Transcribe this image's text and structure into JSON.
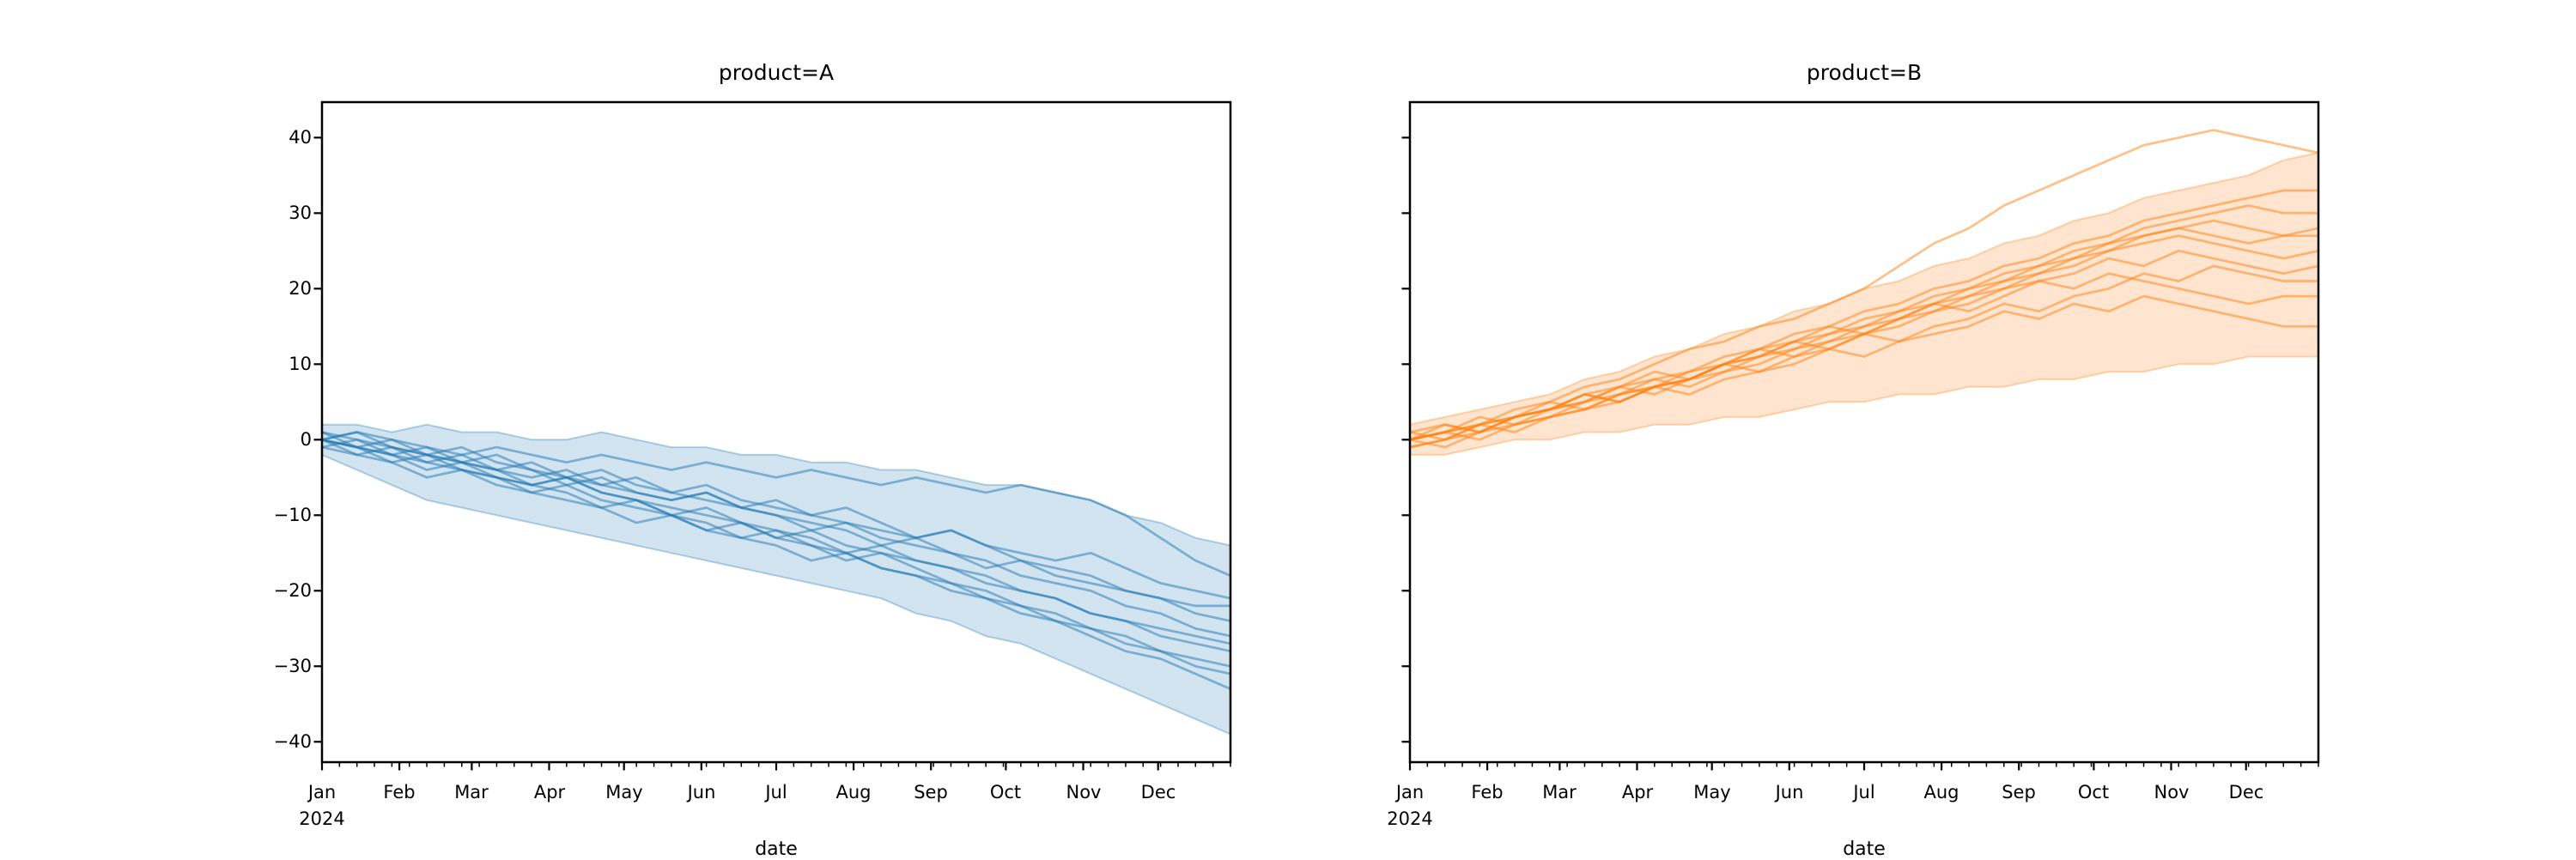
{
  "figure": {
    "background": "#ffffff"
  },
  "chart_data": [
    {
      "type": "line",
      "title": "product=A",
      "xlabel": "date",
      "ylabel": "",
      "color": "#1f77b4",
      "legend": "none",
      "grid": false,
      "x_axis": {
        "year": "2024",
        "months": [
          "Jan",
          "Feb",
          "Mar",
          "Apr",
          "May",
          "Jun",
          "Jul",
          "Aug",
          "Sep",
          "Oct",
          "Nov",
          "Dec"
        ],
        "minor_ticks": "weekly"
      },
      "x_weeks": [
        0,
        2,
        4,
        6,
        8,
        10,
        12,
        14,
        16,
        18,
        20,
        22,
        24,
        26,
        28,
        30,
        32,
        34,
        36,
        38,
        40,
        42,
        44,
        46,
        48,
        50,
        52
      ],
      "yticks": [
        40,
        30,
        20,
        10,
        0,
        -10,
        -20,
        -30,
        -40
      ],
      "ytick_labels": [
        "40",
        "30",
        "20",
        "10",
        "0",
        "−10",
        "−20",
        "−30",
        "−40"
      ],
      "ylim": [
        -42.7,
        44.7
      ],
      "band": {
        "upper": [
          2,
          2,
          1,
          2,
          1,
          1,
          0,
          0,
          1,
          0,
          -1,
          -1,
          -2,
          -2,
          -3,
          -3,
          -4,
          -4,
          -5,
          -6,
          -6,
          -7,
          -8,
          -10,
          -11,
          -13,
          -14
        ],
        "lower": [
          -2,
          -4,
          -6,
          -8,
          -9,
          -10,
          -11,
          -12,
          -13,
          -14,
          -15,
          -16,
          -17,
          -18,
          -19,
          -20,
          -21,
          -23,
          -24,
          -26,
          -27,
          -29,
          -31,
          -33,
          -35,
          -37,
          -39
        ]
      },
      "series": [
        {
          "values": [
            0,
            -1,
            -2,
            -1,
            -3,
            -2,
            -4,
            -5,
            -4,
            -6,
            -7,
            -6,
            -8,
            -9,
            -10,
            -9,
            -11,
            -13,
            -12,
            -14,
            -15,
            -16,
            -15,
            -17,
            -19,
            -20,
            -21
          ]
        },
        {
          "values": [
            0,
            1,
            -1,
            -2,
            -3,
            -4,
            -3,
            -5,
            -6,
            -5,
            -7,
            -8,
            -9,
            -8,
            -10,
            -11,
            -12,
            -13,
            -12,
            -14,
            -16,
            -17,
            -18,
            -20,
            -21,
            -23,
            -24
          ]
        },
        {
          "values": [
            -1,
            -2,
            -3,
            -5,
            -4,
            -6,
            -7,
            -8,
            -9,
            -11,
            -10,
            -12,
            -13,
            -14,
            -16,
            -15,
            -17,
            -18,
            -20,
            -21,
            -23,
            -24,
            -26,
            -28,
            -29,
            -31,
            -33
          ]
        },
        {
          "values": [
            0,
            -2,
            -1,
            -3,
            -4,
            -5,
            -6,
            -5,
            -7,
            -8,
            -9,
            -10,
            -11,
            -13,
            -12,
            -14,
            -15,
            -16,
            -17,
            -18,
            -20,
            -21,
            -23,
            -24,
            -26,
            -27,
            -28
          ]
        },
        {
          "values": [
            1,
            0,
            -1,
            -2,
            -1,
            -3,
            -4,
            -6,
            -5,
            -7,
            -8,
            -7,
            -9,
            -10,
            -11,
            -12,
            -14,
            -13,
            -15,
            -16,
            -18,
            -19,
            -20,
            -22,
            -23,
            -25,
            -26
          ]
        },
        {
          "values": [
            0,
            -1,
            -3,
            -2,
            -4,
            -5,
            -7,
            -6,
            -8,
            -9,
            -10,
            -12,
            -11,
            -13,
            -14,
            -16,
            -15,
            -17,
            -19,
            -20,
            -22,
            -23,
            -25,
            -26,
            -28,
            -29,
            -30
          ]
        },
        {
          "values": [
            0,
            1,
            0,
            -1,
            -2,
            -1,
            -2,
            -3,
            -2,
            -3,
            -4,
            -3,
            -4,
            -5,
            -4,
            -5,
            -6,
            -5,
            -6,
            -7,
            -6,
            -7,
            -8,
            -10,
            -13,
            -16,
            -18
          ]
        },
        {
          "values": [
            -1,
            0,
            -2,
            -3,
            -2,
            -4,
            -5,
            -4,
            -6,
            -7,
            -8,
            -7,
            -9,
            -10,
            -12,
            -11,
            -13,
            -14,
            -15,
            -17,
            -16,
            -18,
            -19,
            -20,
            -21,
            -22,
            -22
          ]
        },
        {
          "values": [
            0,
            -1,
            -2,
            -4,
            -3,
            -5,
            -6,
            -7,
            -9,
            -8,
            -10,
            -11,
            -13,
            -12,
            -14,
            -15,
            -17,
            -18,
            -19,
            -21,
            -22,
            -24,
            -25,
            -27,
            -28,
            -30,
            -31
          ]
        },
        {
          "values": [
            1,
            -1,
            0,
            -2,
            -3,
            -4,
            -6,
            -5,
            -7,
            -8,
            -10,
            -9,
            -11,
            -12,
            -13,
            -15,
            -14,
            -16,
            -17,
            -19,
            -20,
            -21,
            -23,
            -24,
            -25,
            -26,
            -27
          ]
        }
      ]
    },
    {
      "type": "line",
      "title": "product=B",
      "xlabel": "date",
      "ylabel": "",
      "color": "#ff7f0e",
      "legend": "none",
      "grid": false,
      "x_axis": {
        "year": "2024",
        "months": [
          "Jan",
          "Feb",
          "Mar",
          "Apr",
          "May",
          "Jun",
          "Jul",
          "Aug",
          "Sep",
          "Oct",
          "Nov",
          "Dec"
        ],
        "minor_ticks": "weekly"
      },
      "x_weeks": [
        0,
        2,
        4,
        6,
        8,
        10,
        12,
        14,
        16,
        18,
        20,
        22,
        24,
        26,
        28,
        30,
        32,
        34,
        36,
        38,
        40,
        42,
        44,
        46,
        48,
        50,
        52
      ],
      "yticks": [
        40,
        30,
        20,
        10,
        0,
        -10,
        -20,
        -30,
        -40
      ],
      "ytick_labels": [],
      "ylim": [
        -42.7,
        44.7
      ],
      "band": {
        "upper": [
          2,
          3,
          4,
          5,
          6,
          8,
          9,
          11,
          12,
          14,
          15,
          17,
          18,
          20,
          21,
          23,
          24,
          26,
          27,
          29,
          30,
          32,
          33,
          34,
          35,
          37,
          38
        ],
        "lower": [
          -2,
          -2,
          -1,
          0,
          0,
          1,
          1,
          2,
          2,
          3,
          3,
          4,
          5,
          5,
          6,
          6,
          7,
          7,
          8,
          8,
          9,
          9,
          10,
          10,
          11,
          11,
          11
        ]
      },
      "series": [
        {
          "values": [
            0,
            1,
            2,
            4,
            5,
            7,
            8,
            10,
            12,
            13,
            15,
            16,
            18,
            20,
            23,
            26,
            28,
            31,
            33,
            35,
            37,
            39,
            40,
            41,
            40,
            39,
            38
          ]
        },
        {
          "values": [
            0,
            1,
            3,
            2,
            4,
            5,
            7,
            8,
            9,
            11,
            12,
            14,
            15,
            17,
            18,
            20,
            21,
            23,
            24,
            26,
            27,
            29,
            30,
            31,
            32,
            33,
            33
          ]
        },
        {
          "values": [
            -1,
            0,
            1,
            3,
            4,
            6,
            5,
            7,
            8,
            10,
            11,
            13,
            14,
            16,
            17,
            19,
            20,
            22,
            23,
            25,
            26,
            28,
            29,
            30,
            31,
            30,
            30
          ]
        },
        {
          "values": [
            0,
            -1,
            1,
            2,
            3,
            5,
            6,
            8,
            7,
            9,
            10,
            12,
            13,
            15,
            16,
            18,
            19,
            21,
            22,
            24,
            25,
            27,
            28,
            29,
            28,
            27,
            28
          ]
        },
        {
          "values": [
            1,
            2,
            1,
            3,
            4,
            5,
            7,
            6,
            8,
            9,
            11,
            12,
            14,
            15,
            17,
            18,
            20,
            21,
            23,
            24,
            26,
            27,
            28,
            27,
            26,
            27,
            27
          ]
        },
        {
          "values": [
            0,
            1,
            2,
            3,
            5,
            4,
            6,
            7,
            9,
            10,
            12,
            11,
            13,
            14,
            16,
            17,
            19,
            20,
            22,
            23,
            25,
            26,
            27,
            26,
            25,
            24,
            25
          ]
        },
        {
          "values": [
            -1,
            0,
            2,
            1,
            3,
            4,
            6,
            7,
            8,
            10,
            11,
            13,
            12,
            14,
            15,
            17,
            18,
            20,
            21,
            22,
            24,
            23,
            25,
            24,
            23,
            22,
            23
          ]
        },
        {
          "values": [
            0,
            2,
            1,
            3,
            4,
            6,
            5,
            7,
            8,
            10,
            9,
            11,
            12,
            14,
            13,
            15,
            16,
            18,
            17,
            19,
            20,
            22,
            21,
            23,
            22,
            21,
            21
          ]
        },
        {
          "values": [
            1,
            0,
            2,
            3,
            4,
            6,
            7,
            9,
            8,
            10,
            12,
            13,
            15,
            14,
            16,
            18,
            17,
            19,
            21,
            20,
            22,
            21,
            20,
            19,
            18,
            19,
            19
          ]
        },
        {
          "values": [
            0,
            1,
            0,
            2,
            3,
            4,
            5,
            7,
            6,
            8,
            9,
            10,
            12,
            11,
            13,
            14,
            15,
            17,
            16,
            18,
            17,
            19,
            18,
            17,
            16,
            15,
            15
          ]
        }
      ]
    }
  ]
}
